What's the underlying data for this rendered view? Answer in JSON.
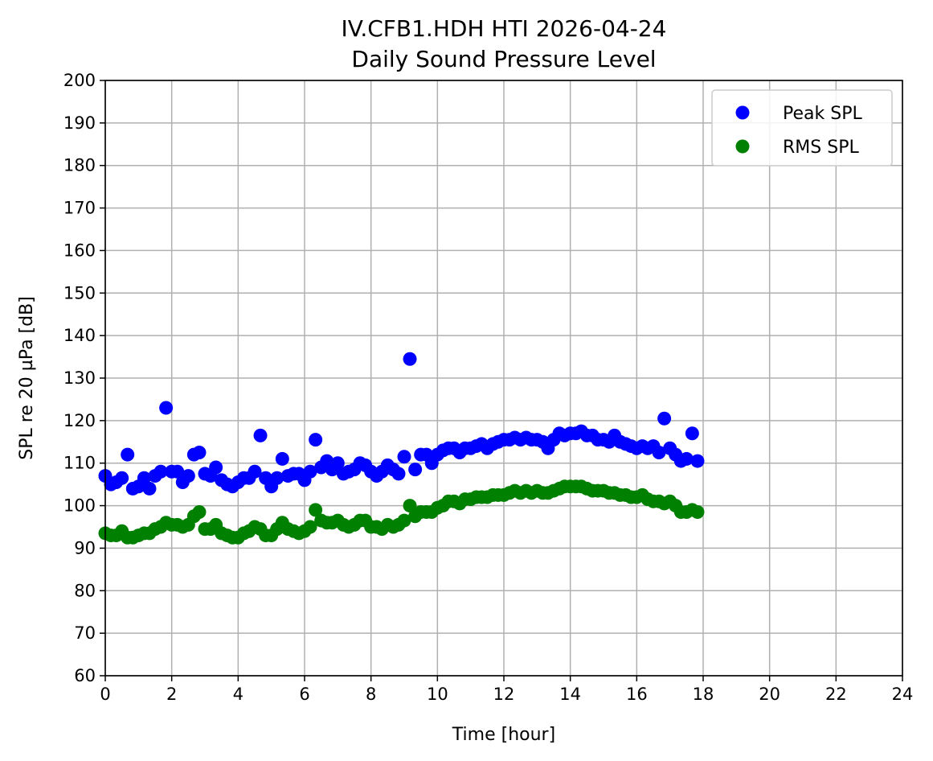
{
  "chart_data": {
    "type": "scatter",
    "title": "IV.CFB1.HDH HTI 2026-04-24",
    "subtitle": "Daily Sound Pressure Level",
    "xlabel": "Time [hour]",
    "ylabel": "SPL re 20 µPa [dB]",
    "xlim": [
      0,
      24
    ],
    "ylim": [
      60,
      200
    ],
    "xticks": [
      0,
      2,
      4,
      6,
      8,
      10,
      12,
      14,
      16,
      18,
      20,
      22,
      24
    ],
    "yticks": [
      60,
      70,
      80,
      90,
      100,
      110,
      120,
      130,
      140,
      150,
      160,
      170,
      180,
      190,
      200
    ],
    "grid": true,
    "legend_position": "top-right",
    "series": [
      {
        "name": "Peak SPL",
        "color": "#0000ff",
        "x": [
          0.0,
          0.17,
          0.33,
          0.5,
          0.67,
          0.83,
          1.0,
          1.17,
          1.33,
          1.5,
          1.67,
          1.83,
          2.0,
          2.17,
          2.33,
          2.5,
          2.67,
          2.83,
          3.0,
          3.17,
          3.33,
          3.5,
          3.67,
          3.83,
          4.0,
          4.17,
          4.33,
          4.5,
          4.67,
          4.83,
          5.0,
          5.17,
          5.33,
          5.5,
          5.67,
          5.83,
          6.0,
          6.17,
          6.33,
          6.5,
          6.67,
          6.83,
          7.0,
          7.17,
          7.33,
          7.5,
          7.67,
          7.83,
          8.0,
          8.17,
          8.33,
          8.5,
          8.67,
          8.83,
          9.0,
          9.17,
          9.33,
          9.5,
          9.67,
          9.83,
          10.0,
          10.17,
          10.33,
          10.5,
          10.67,
          10.83,
          11.0,
          11.17,
          11.33,
          11.5,
          11.67,
          11.83,
          12.0,
          12.17,
          12.33,
          12.5,
          12.67,
          12.83,
          13.0,
          13.17,
          13.33,
          13.5,
          13.67,
          13.83,
          14.0,
          14.17,
          14.33,
          14.5,
          14.67,
          14.83,
          15.0,
          15.17,
          15.33,
          15.5,
          15.67,
          15.83,
          16.0,
          16.17,
          16.33,
          16.5,
          16.67,
          16.83,
          17.0,
          17.17,
          17.33,
          17.5,
          17.67,
          17.83
        ],
        "y": [
          107,
          105,
          105.5,
          106.5,
          112,
          104,
          104.5,
          106.5,
          104,
          107,
          108,
          123,
          108,
          108,
          105.5,
          107,
          112,
          112.5,
          107.5,
          107,
          109,
          106,
          105,
          104.5,
          105.5,
          106.5,
          106.5,
          108,
          116.5,
          106.5,
          104.5,
          106.5,
          111,
          107,
          107.5,
          107.5,
          106,
          108,
          115.5,
          109,
          110.5,
          108.5,
          110,
          107.5,
          108,
          108.5,
          110,
          109.5,
          108,
          107,
          108,
          109.5,
          108.5,
          107.5,
          111.5,
          134.5,
          108.5,
          112,
          112,
          110,
          112,
          113,
          113.5,
          113.5,
          112.5,
          113.5,
          113.5,
          114,
          114.5,
          113.5,
          114.5,
          115,
          115.5,
          115.5,
          116,
          115.5,
          116,
          115.5,
          115.5,
          115,
          113.5,
          115.5,
          117,
          116.5,
          117,
          117,
          117.5,
          116.5,
          116.5,
          115.5,
          115.5,
          115,
          116.5,
          115,
          114.5,
          114,
          113.5,
          114,
          113.5,
          114,
          112.5,
          120.5,
          113.5,
          112,
          110.5,
          111,
          117,
          110.5
        ]
      },
      {
        "name": "RMS SPL",
        "color": "#008000",
        "x": [
          0.0,
          0.17,
          0.33,
          0.5,
          0.67,
          0.83,
          1.0,
          1.17,
          1.33,
          1.5,
          1.67,
          1.83,
          2.0,
          2.17,
          2.33,
          2.5,
          2.67,
          2.83,
          3.0,
          3.17,
          3.33,
          3.5,
          3.67,
          3.83,
          4.0,
          4.17,
          4.33,
          4.5,
          4.67,
          4.83,
          5.0,
          5.17,
          5.33,
          5.5,
          5.67,
          5.83,
          6.0,
          6.17,
          6.33,
          6.5,
          6.67,
          6.83,
          7.0,
          7.17,
          7.33,
          7.5,
          7.67,
          7.83,
          8.0,
          8.17,
          8.33,
          8.5,
          8.67,
          8.83,
          9.0,
          9.17,
          9.33,
          9.5,
          9.67,
          9.83,
          10.0,
          10.17,
          10.33,
          10.5,
          10.67,
          10.83,
          11.0,
          11.17,
          11.33,
          11.5,
          11.67,
          11.83,
          12.0,
          12.17,
          12.33,
          12.5,
          12.67,
          12.83,
          13.0,
          13.17,
          13.33,
          13.5,
          13.67,
          13.83,
          14.0,
          14.17,
          14.33,
          14.5,
          14.67,
          14.83,
          15.0,
          15.17,
          15.33,
          15.5,
          15.67,
          15.83,
          16.0,
          16.17,
          16.33,
          16.5,
          16.67,
          16.83,
          17.0,
          17.17,
          17.33,
          17.5,
          17.67,
          17.83
        ],
        "y": [
          93.5,
          93,
          93,
          94,
          92.5,
          92.5,
          93,
          93.5,
          93.5,
          94.5,
          95,
          96,
          95.5,
          95.5,
          95,
          95.5,
          97.5,
          98.5,
          94.5,
          94.5,
          95.5,
          93.5,
          93,
          92.5,
          92.5,
          93.5,
          94,
          95,
          94.5,
          93,
          93,
          94.5,
          96,
          94.5,
          94,
          93.5,
          94,
          95,
          99,
          96.5,
          96,
          96,
          96.5,
          95.5,
          95,
          95.5,
          96.5,
          96.5,
          95,
          95,
          94.5,
          95.5,
          95,
          95.5,
          96.5,
          100,
          97.5,
          98.5,
          98.5,
          98.5,
          99.5,
          100,
          101,
          101,
          100.5,
          101.5,
          101.5,
          102,
          102,
          102,
          102.5,
          102.5,
          102.5,
          103,
          103.5,
          103,
          103.5,
          103,
          103.5,
          103,
          103,
          103.5,
          104,
          104.5,
          104.5,
          104.5,
          104.5,
          104,
          103.5,
          103.5,
          103.5,
          103,
          103,
          102.5,
          102.5,
          102,
          102,
          102.5,
          101.5,
          101,
          101,
          100.5,
          101,
          100,
          98.5,
          98.5,
          99,
          98.5
        ]
      }
    ]
  }
}
